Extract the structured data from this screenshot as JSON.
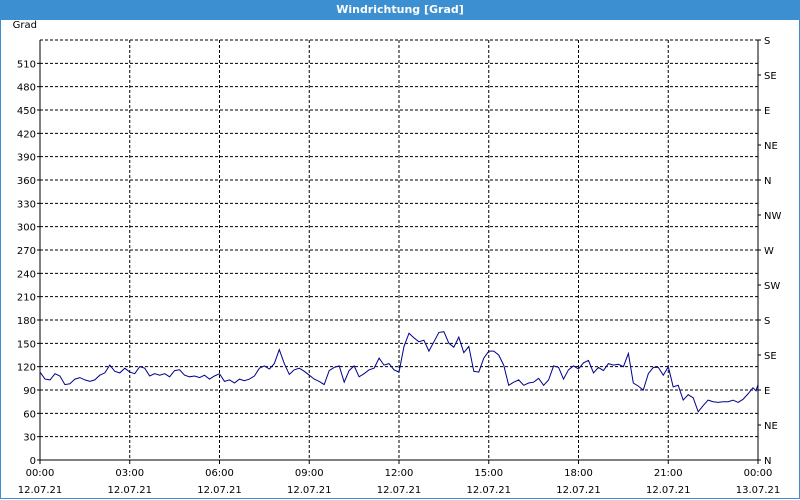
{
  "window": {
    "title": "Windrichtung [Grad]"
  },
  "chart_data": {
    "type": "line",
    "title": "Windrichtung [Grad]",
    "ylabel": "Grad",
    "xlabel": "",
    "ylim": [
      0,
      540
    ],
    "grid": true,
    "y_ticks": [
      0,
      30,
      60,
      90,
      120,
      150,
      180,
      210,
      240,
      270,
      300,
      330,
      360,
      390,
      420,
      450,
      480,
      510
    ],
    "right_axis_labels": [
      {
        "value": 0,
        "label": "N"
      },
      {
        "value": 45,
        "label": "NE"
      },
      {
        "value": 90,
        "label": "E"
      },
      {
        "value": 135,
        "label": "SE"
      },
      {
        "value": 180,
        "label": "S"
      },
      {
        "value": 225,
        "label": "SW"
      },
      {
        "value": 270,
        "label": "W"
      },
      {
        "value": 315,
        "label": "NW"
      },
      {
        "value": 360,
        "label": "N"
      },
      {
        "value": 405,
        "label": "NE"
      },
      {
        "value": 450,
        "label": "E"
      },
      {
        "value": 495,
        "label": "SE"
      },
      {
        "value": 540,
        "label": "S"
      }
    ],
    "x_ticks": [
      {
        "time": "00:00",
        "date": "12.07.21"
      },
      {
        "time": "03:00",
        "date": "12.07.21"
      },
      {
        "time": "06:00",
        "date": "12.07.21"
      },
      {
        "time": "09:00",
        "date": "12.07.21"
      },
      {
        "time": "12:00",
        "date": "12.07.21"
      },
      {
        "time": "15:00",
        "date": "12.07.21"
      },
      {
        "time": "18:00",
        "date": "12.07.21"
      },
      {
        "time": "21:00",
        "date": "12.07.21"
      },
      {
        "time": "00:00",
        "date": "13.07.21"
      }
    ],
    "series": [
      {
        "color": "#00008b",
        "points": [
          [
            "00:00",
            113
          ],
          [
            "00:10",
            104
          ],
          [
            "00:20",
            103
          ],
          [
            "00:30",
            111
          ],
          [
            "00:40",
            108
          ],
          [
            "00:50",
            97
          ],
          [
            "01:00",
            98
          ],
          [
            "01:10",
            104
          ],
          [
            "01:20",
            106
          ],
          [
            "01:30",
            103
          ],
          [
            "01:40",
            101
          ],
          [
            "01:50",
            103
          ],
          [
            "02:00",
            109
          ],
          [
            "02:10",
            112
          ],
          [
            "02:20",
            122
          ],
          [
            "02:30",
            114
          ],
          [
            "02:40",
            112
          ],
          [
            "02:50",
            118
          ],
          [
            "03:00",
            113
          ],
          [
            "03:10",
            111
          ],
          [
            "03:20",
            120
          ],
          [
            "03:30",
            118
          ],
          [
            "03:40",
            108
          ],
          [
            "03:50",
            111
          ],
          [
            "04:00",
            109
          ],
          [
            "04:10",
            111
          ],
          [
            "04:20",
            107
          ],
          [
            "04:30",
            115
          ],
          [
            "04:40",
            116
          ],
          [
            "04:50",
            109
          ],
          [
            "05:00",
            107
          ],
          [
            "05:10",
            108
          ],
          [
            "05:20",
            106
          ],
          [
            "05:30",
            109
          ],
          [
            "05:40",
            104
          ],
          [
            "05:50",
            108
          ],
          [
            "06:00",
            111
          ],
          [
            "06:10",
            101
          ],
          [
            "06:20",
            103
          ],
          [
            "06:30",
            99
          ],
          [
            "06:40",
            104
          ],
          [
            "06:50",
            102
          ],
          [
            "07:00",
            104
          ],
          [
            "07:10",
            108
          ],
          [
            "07:20",
            118
          ],
          [
            "07:30",
            121
          ],
          [
            "07:40",
            117
          ],
          [
            "07:50",
            124
          ],
          [
            "08:00",
            142
          ],
          [
            "08:10",
            124
          ],
          [
            "08:20",
            110
          ],
          [
            "08:30",
            116
          ],
          [
            "08:40",
            118
          ],
          [
            "08:50",
            114
          ],
          [
            "09:00",
            109
          ],
          [
            "09:10",
            104
          ],
          [
            "09:20",
            101
          ],
          [
            "09:30",
            97
          ],
          [
            "09:40",
            115
          ],
          [
            "09:50",
            119
          ],
          [
            "10:00",
            121
          ],
          [
            "10:10",
            100
          ],
          [
            "10:20",
            115
          ],
          [
            "10:30",
            121
          ],
          [
            "10:40",
            107
          ],
          [
            "10:50",
            111
          ],
          [
            "11:00",
            116
          ],
          [
            "11:10",
            118
          ],
          [
            "11:20",
            131
          ],
          [
            "11:30",
            122
          ],
          [
            "11:40",
            124
          ],
          [
            "11:50",
            116
          ],
          [
            "12:00",
            113
          ],
          [
            "12:10",
            146
          ],
          [
            "12:20",
            163
          ],
          [
            "12:30",
            157
          ],
          [
            "12:40",
            152
          ],
          [
            "12:50",
            154
          ],
          [
            "13:00",
            140
          ],
          [
            "13:10",
            152
          ],
          [
            "13:20",
            164
          ],
          [
            "13:30",
            165
          ],
          [
            "13:40",
            150
          ],
          [
            "13:50",
            145
          ],
          [
            "14:00",
            158
          ],
          [
            "14:10",
            138
          ],
          [
            "14:20",
            146
          ],
          [
            "14:30",
            114
          ],
          [
            "14:40",
            113
          ],
          [
            "14:50",
            131
          ],
          [
            "15:00",
            140
          ],
          [
            "15:10",
            140
          ],
          [
            "15:20",
            135
          ],
          [
            "15:30",
            122
          ],
          [
            "15:40",
            96
          ],
          [
            "15:50",
            100
          ],
          [
            "16:00",
            103
          ],
          [
            "16:10",
            96
          ],
          [
            "16:20",
            99
          ],
          [
            "16:30",
            100
          ],
          [
            "16:40",
            105
          ],
          [
            "16:50",
            96
          ],
          [
            "17:00",
            103
          ],
          [
            "17:10",
            121
          ],
          [
            "17:20",
            119
          ],
          [
            "17:30",
            104
          ],
          [
            "17:40",
            116
          ],
          [
            "17:50",
            121
          ],
          [
            "18:00",
            117
          ],
          [
            "18:10",
            125
          ],
          [
            "18:20",
            128
          ],
          [
            "18:30",
            112
          ],
          [
            "18:40",
            119
          ],
          [
            "18:50",
            115
          ],
          [
            "19:00",
            124
          ],
          [
            "19:10",
            122
          ],
          [
            "19:20",
            123
          ],
          [
            "19:30",
            120
          ],
          [
            "19:40",
            137
          ],
          [
            "19:50",
            99
          ],
          [
            "20:00",
            95
          ],
          [
            "20:10",
            90
          ],
          [
            "20:20",
            111
          ],
          [
            "20:30",
            119
          ],
          [
            "20:40",
            119
          ],
          [
            "20:50",
            109
          ],
          [
            "21:00",
            120
          ],
          [
            "21:10",
            94
          ],
          [
            "21:20",
            96
          ],
          [
            "21:30",
            77
          ],
          [
            "21:40",
            84
          ],
          [
            "21:50",
            80
          ],
          [
            "22:00",
            62
          ],
          [
            "22:10",
            70
          ],
          [
            "22:20",
            77
          ],
          [
            "22:30",
            75
          ],
          [
            "22:40",
            74
          ],
          [
            "22:50",
            75
          ],
          [
            "23:00",
            75
          ],
          [
            "23:10",
            77
          ],
          [
            "23:20",
            74
          ],
          [
            "23:30",
            78
          ],
          [
            "23:40",
            85
          ],
          [
            "23:50",
            93
          ],
          [
            "23:56",
            89
          ],
          [
            "23:59",
            95
          ],
          [
            "24:00",
            93
          ]
        ]
      }
    ]
  }
}
